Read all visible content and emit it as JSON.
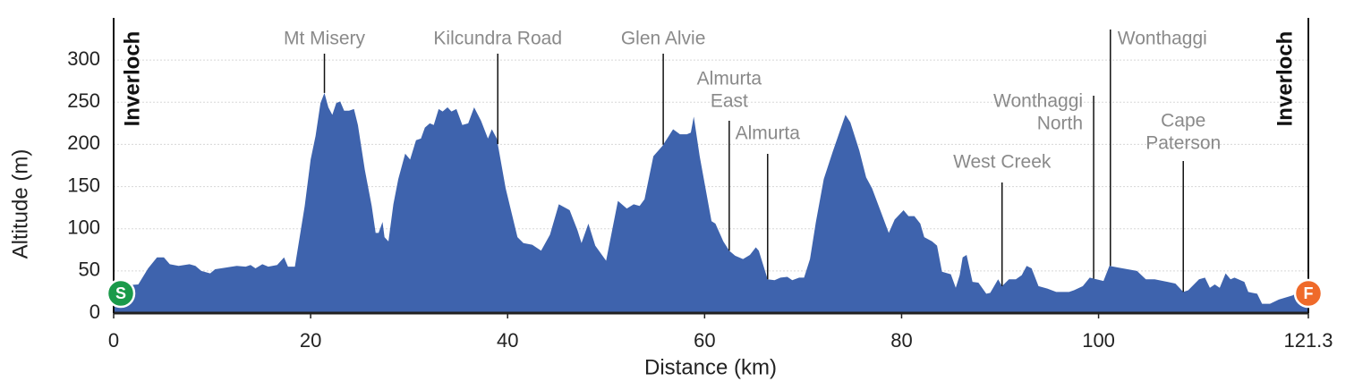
{
  "chart_data": {
    "type": "area",
    "xlabel": "Distance (km)",
    "ylabel": "Altitude (m)",
    "color": "#3e63ad",
    "xlim": [
      0,
      121.3
    ],
    "ylim": [
      0,
      350
    ],
    "xticks": [
      0,
      20,
      40,
      60,
      80,
      100,
      121.3
    ],
    "yticks": [
      0,
      50,
      100,
      150,
      200,
      250,
      300
    ],
    "grid": true,
    "x": [
      0,
      2.5,
      3.5,
      4.4,
      5.1,
      5.7,
      6.6,
      7.7,
      8.3,
      8.9,
      9.8,
      10.3,
      12.5,
      13.4,
      13.9,
      14.4,
      15.1,
      15.7,
      16.6,
      17.3,
      17.7,
      18.4,
      19.4,
      20.0,
      20.5,
      21.0,
      21.4,
      21.8,
      22.2,
      22.6,
      23.0,
      23.4,
      23.9,
      24.4,
      24.8,
      25.5,
      26.2,
      26.6,
      26.9,
      27.3,
      27.5,
      27.9,
      28.4,
      28.9,
      29.6,
      30.1,
      30.7,
      31.2,
      31.6,
      32.1,
      32.5,
      33.0,
      33.4,
      33.9,
      34.3,
      34.8,
      35.4,
      36.0,
      36.6,
      37.3,
      38.0,
      38.4,
      38.9,
      39.8,
      41.0,
      41.6,
      42.5,
      43.4,
      44.3,
      45.2,
      46.3,
      47.1,
      47.5,
      48.2,
      48.9,
      50.0,
      51.2,
      52.1,
      52.8,
      53.4,
      53.9,
      54.8,
      55.7,
      56.2,
      56.8,
      57.5,
      58.2,
      58.6,
      58.9,
      59.5,
      60.7,
      61.1,
      61.9,
      62.5,
      63.1,
      63.9,
      64.6,
      65.2,
      65.5,
      66.4,
      67.1,
      67.7,
      68.4,
      68.9,
      69.6,
      70.1,
      70.7,
      71.3,
      72.1,
      73.0,
      74.3,
      74.8,
      75.7,
      76.4,
      77.0,
      77.9,
      78.7,
      79.3,
      79.8,
      80.2,
      80.7,
      81.3,
      81.9,
      82.3,
      83.1,
      83.6,
      84.1,
      85.0,
      85.5,
      85.9,
      86.2,
      86.6,
      87.2,
      87.8,
      88.6,
      89.0,
      89.8,
      90.2,
      90.9,
      91.6,
      92.2,
      92.7,
      93.2,
      93.9,
      94.8,
      95.7,
      97.0,
      97.5,
      98.4,
      99.1,
      99.8,
      100.5,
      101.1,
      102.0,
      103.9,
      104.8,
      105.7,
      107.0,
      107.8,
      108.6,
      109.1,
      110.2,
      110.8,
      111.3,
      111.8,
      112.3,
      112.9,
      113.4,
      113.8,
      114.8,
      115.2,
      116.1,
      116.6,
      117.4,
      118.3,
      119.7,
      121.3
    ],
    "values": [
      32,
      34,
      53,
      66,
      66,
      58,
      56,
      58,
      56,
      50,
      47,
      52,
      56,
      55,
      57,
      53,
      58,
      55,
      57,
      66,
      55,
      55,
      127,
      182,
      210,
      249,
      261,
      244,
      235,
      249,
      251,
      240,
      240,
      242,
      223,
      170,
      127,
      95,
      95,
      108,
      90,
      85,
      129,
      159,
      189,
      182,
      205,
      207,
      220,
      225,
      223,
      242,
      239,
      244,
      239,
      242,
      223,
      225,
      244,
      228,
      207,
      218,
      207,
      148,
      90,
      83,
      81,
      74,
      93,
      129,
      122,
      98,
      83,
      106,
      80,
      62,
      133,
      124,
      129,
      127,
      135,
      186,
      198,
      207,
      218,
      212,
      212,
      214,
      233,
      186,
      109,
      106,
      85,
      74,
      68,
      64,
      69,
      78,
      74,
      40,
      39,
      42,
      43,
      39,
      42,
      42,
      64,
      108,
      159,
      191,
      235,
      226,
      193,
      161,
      148,
      120,
      95,
      111,
      117,
      122,
      115,
      115,
      106,
      90,
      85,
      80,
      49,
      46,
      30,
      45,
      66,
      69,
      37,
      36,
      23,
      24,
      40,
      32,
      40,
      40,
      45,
      56,
      53,
      32,
      29,
      25,
      25,
      27,
      32,
      42,
      40,
      38,
      56,
      54,
      50,
      40,
      40,
      37,
      35,
      25,
      27,
      40,
      42,
      30,
      34,
      30,
      47,
      40,
      42,
      37,
      25,
      23,
      11,
      11,
      16,
      21,
      32
    ],
    "annotations": [
      {
        "x": 21.4,
        "label": [
          "Mt Misery"
        ]
      },
      {
        "x": 39.0,
        "label": [
          "Kilcundra Road"
        ]
      },
      {
        "x": 55.8,
        "label": [
          "Glen Alvie"
        ]
      },
      {
        "x": 62.5,
        "label": [
          "Almurta",
          "East"
        ]
      },
      {
        "x": 66.4,
        "label": [
          "Almurta"
        ]
      },
      {
        "x": 90.2,
        "label": [
          "West Creek"
        ]
      },
      {
        "x": 99.5,
        "label": [
          "Wonthaggi",
          "North"
        ]
      },
      {
        "x": 101.2,
        "label": [
          "Wonthaggi"
        ]
      },
      {
        "x": 108.6,
        "label": [
          "Cape",
          "Paterson"
        ]
      }
    ],
    "endpoints": [
      {
        "x": 0,
        "label": "Inverloch",
        "marker": "S",
        "color": "#1a9a4a"
      },
      {
        "x": 121.3,
        "label": "Inverloch",
        "marker": "F",
        "color": "#ef6a2a"
      }
    ]
  }
}
